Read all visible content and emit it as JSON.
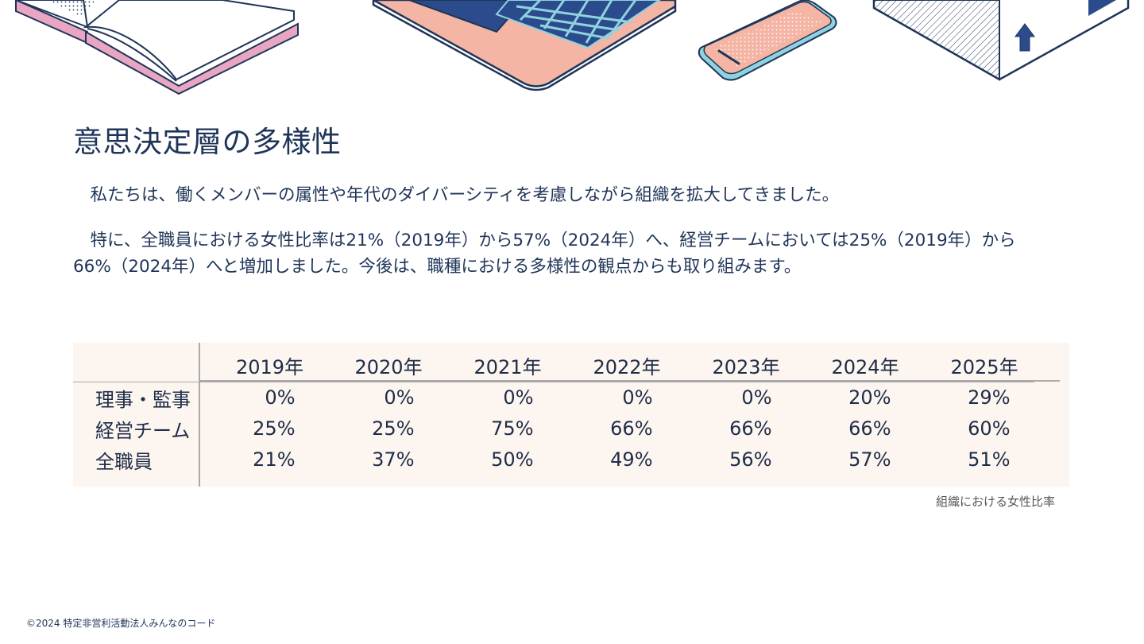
{
  "page": {
    "title": "意思決定層の多様性",
    "paragraph1": "　私たちは、働くメンバーの属性や年代のダイバーシティを考慮しながら組織を拡大してきました。",
    "paragraph2": "　特に、全職員における女性比率は21%（2019年）から57%（2024年）へ、経営チームにおいては25%（2019年）から66%（2024年）へと増加しました。今後は、職種における多様性の観点からも取り組みます。",
    "caption": "組織における女性比率",
    "footer": "©2024 特定非営利活動法人みんなのコード"
  },
  "table": {
    "years": [
      "2019年",
      "2020年",
      "2021年",
      "2022年",
      "2023年",
      "2024年",
      "2025年"
    ],
    "rows": [
      {
        "label": "理事・監事",
        "values": [
          "0%",
          "0%",
          "0%",
          "0%",
          "0%",
          "20%",
          "29%"
        ]
      },
      {
        "label": "経営チーム",
        "values": [
          "25%",
          "25%",
          "75%",
          "66%",
          "66%",
          "66%",
          "60%"
        ]
      },
      {
        "label": "全職員",
        "values": [
          "21%",
          "37%",
          "50%",
          "49%",
          "56%",
          "57%",
          "51%"
        ]
      }
    ]
  },
  "colors": {
    "navy": "#1f3558",
    "pink": "#f5b5a5",
    "light_pink": "#e8a6c2",
    "cyan": "#8fd3df",
    "table_bg": "#fdf5ef"
  },
  "icons": [
    "open-book-icon",
    "laptop-icon",
    "smartphone-icon",
    "box-icon",
    "up-arrow-icon"
  ]
}
